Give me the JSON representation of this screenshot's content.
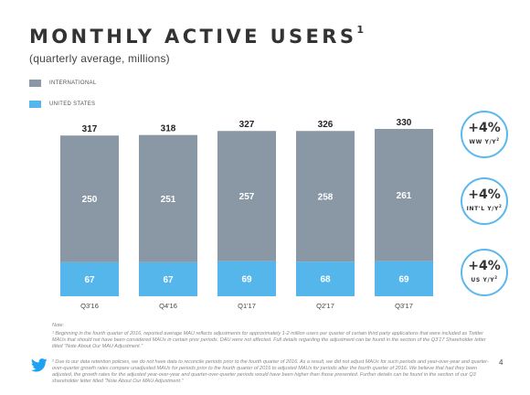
{
  "slide": {
    "title": "MONTHLY ACTIVE USERS",
    "title_sup": "1",
    "subtitle": "(quarterly average, millions)",
    "page_number": "4"
  },
  "legend": [
    {
      "label": "INTERNATIONAL",
      "color": "#8a98a6"
    },
    {
      "label": "UNITED STATES",
      "color": "#55b6ec"
    }
  ],
  "chart_data": {
    "type": "bar",
    "stacked": true,
    "categories": [
      "Q3'16",
      "Q4'16",
      "Q1'17",
      "Q2'17",
      "Q3'17"
    ],
    "series": [
      {
        "name": "UNITED STATES",
        "values": [
          67,
          67,
          69,
          68,
          69
        ],
        "color": "#55b6ec"
      },
      {
        "name": "INTERNATIONAL",
        "values": [
          250,
          251,
          257,
          258,
          261
        ],
        "color": "#8a98a6"
      }
    ],
    "totals": [
      317,
      318,
      327,
      326,
      330
    ],
    "title": "MONTHLY ACTIVE USERS",
    "xlabel": "",
    "ylabel": "",
    "ylim": [
      0,
      330
    ],
    "grid": false,
    "legend_position": "top-left"
  },
  "badges": [
    {
      "value": "+4%",
      "label": "WW Y/Y",
      "sup": "2"
    },
    {
      "value": "+4%",
      "label": "INT'L Y/Y",
      "sup": "2"
    },
    {
      "value": "+4%",
      "label": "US Y/Y",
      "sup": "2"
    }
  ],
  "notes": {
    "label": "Note:",
    "footnote_1": "¹ Beginning in the fourth quarter of 2016, reported average MAU reflects adjustments for approximately 1-2 million users per quarter of certain third party applications that were included as Twitter MAUs that should not have been considered MAUs in certain prior periods. DAU were not affected. Full details regarding the adjustment can be found in the section of the Q3'17 Shareholder letter titled \"Note About Our MAU Adjustment.\"",
    "footnote_2": "² Due to our data retention policies, we do not have data to reconcile periods prior to the fourth quarter of 2016. As a result, we did not adjust MAUs for such periods and year-over-year and quarter-over-quarter growth rates compare unadjusted MAUs for periods prior to the fourth quarter of 2016 to adjusted MAUs for periods after the fourth quarter of 2016. We believe that had they been adjusted, the growth rates for the adjusted year-over-year and quarter-over-quarter periods would have been higher than those presented. Further details can be found in the section of our Q3 shareholder letter titled \"Note About Our MAU Adjustment.\""
  },
  "icons": {
    "logo": "twitter-bird-icon",
    "logo_color": "#1da1f2"
  }
}
